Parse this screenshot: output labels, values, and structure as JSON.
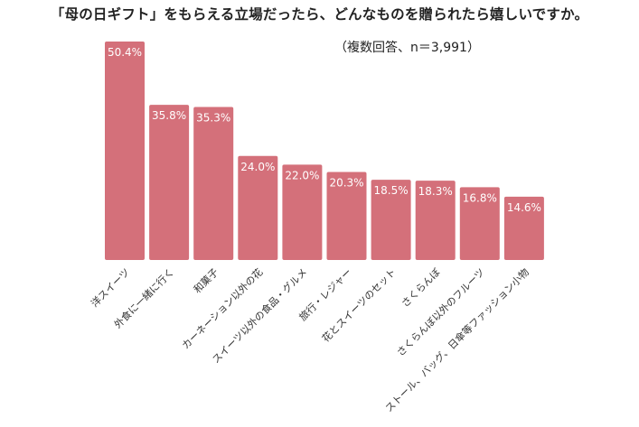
{
  "chart_data": {
    "type": "bar",
    "title": "「母の日ギフト」をもらえる立場だったら、どんなものを贈られたら嬉しいですか。",
    "note": "（複数回答、n＝3,991）",
    "categories": [
      "洋スイーツ",
      "外食に一緒に行く",
      "和菓子",
      "カーネーション以外の花",
      "スイーツ以外の食品・グルメ",
      "旅行・レジャー",
      "花とスイーツのセット",
      "さくらんぼ",
      "さくらんぼ以外のフルーツ",
      "ストール、バッグ、日傘等ファッション小物"
    ],
    "values": [
      50.4,
      35.8,
      35.3,
      24.0,
      22.0,
      20.3,
      18.5,
      18.3,
      16.8,
      14.6
    ],
    "value_labels": [
      "50.4%",
      "35.8%",
      "35.3%",
      "24.0%",
      "22.0%",
      "20.3%",
      "18.5%",
      "18.3%",
      "16.8%",
      "14.6%"
    ],
    "ylim": [
      0,
      50.4
    ],
    "grid": false,
    "legend": "none",
    "bar_color": "#d4707a",
    "label_color": "#ffffff"
  }
}
